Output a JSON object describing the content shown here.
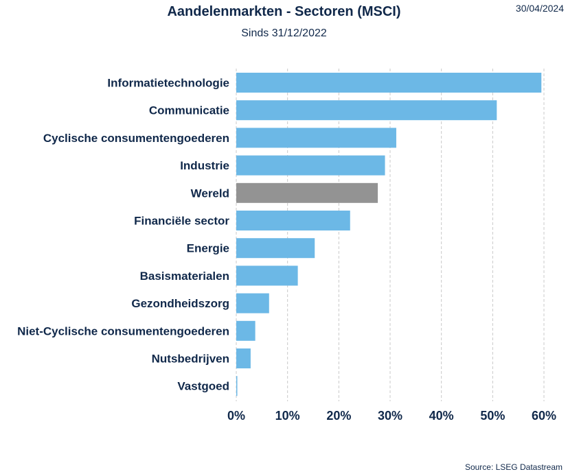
{
  "header": {
    "title": "Aandelenmarkten - Sectoren (MSCI)",
    "subtitle": "Sinds 31/12/2022",
    "date": "30/04/2024"
  },
  "footer": {
    "source": "Source: LSEG Datastream"
  },
  "colors": {
    "bar": "#6cb8e6",
    "highlight": "#939393",
    "grid": "#c8c8c8",
    "text": "#10284a"
  },
  "chart_data": {
    "type": "bar",
    "orientation": "horizontal",
    "title": "Aandelenmarkten - Sectoren (MSCI)",
    "subtitle": "Sinds 31/12/2022",
    "categories": [
      "Informatietechnologie",
      "Communicatie",
      "Cyclische consumentengoederen",
      "Industrie",
      "Wereld",
      "Financiële sector",
      "Energie",
      "Basismaterialen",
      "Gezondheidszorg",
      "Niet-Cyclische consumentengoederen",
      "Nutsbedrijven",
      "Vastgoed"
    ],
    "values": [
      59.5,
      50.8,
      31.2,
      29.0,
      27.6,
      22.2,
      15.3,
      12.0,
      6.4,
      3.7,
      2.8,
      0.2
    ],
    "highlight_category": "Wereld",
    "xlim": [
      0,
      60
    ],
    "xticks": [
      0,
      10,
      20,
      30,
      40,
      50,
      60
    ],
    "xtick_labels": [
      "0%",
      "10%",
      "20%",
      "30%",
      "40%",
      "50%",
      "60%"
    ],
    "grid": true,
    "xlabel": "",
    "ylabel": ""
  }
}
